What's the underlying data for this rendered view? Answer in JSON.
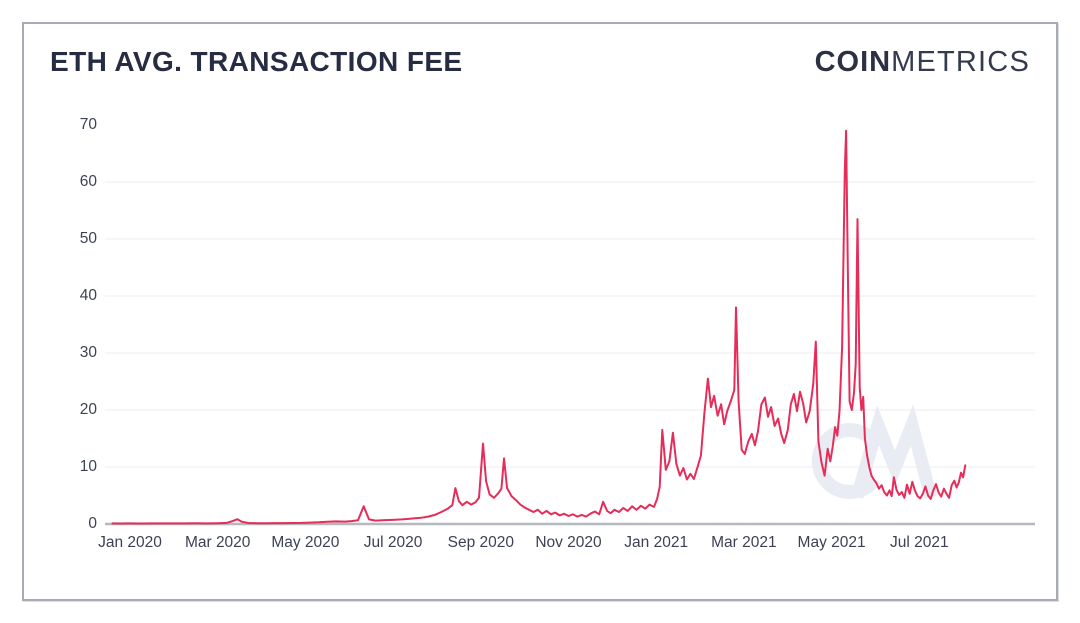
{
  "card": {
    "title": "ETH AVG. TRANSACTION FEE"
  },
  "logo": {
    "bold": "COIN",
    "light": "METRICS"
  },
  "watermark": {
    "name": "coinmetrics-cm-monogram"
  },
  "colors": {
    "line": "#e62d5a",
    "title_text": "#262c42",
    "axis_label": "#3c4254",
    "gridline": "#f3f3f6",
    "baseline": "#b6b8c0",
    "card_border": "#a9abb4",
    "watermark": "#eaecf3",
    "background": "#ffffff"
  },
  "chart_data": {
    "type": "line",
    "title": "ETH AVG. TRANSACTION FEE",
    "series_name": "ETH average transaction fee",
    "xlabel": "",
    "ylabel": "",
    "grid": "horizontal-only",
    "legend": "none",
    "ylim": [
      0,
      70
    ],
    "y_ticks": [
      0,
      10,
      20,
      30,
      40,
      50,
      60,
      70
    ],
    "x_tick_labels": [
      "Jan 2020",
      "Mar 2020",
      "May 2020",
      "Jul 2020",
      "Sep 2020",
      "Nov 2020",
      "Jan 2021",
      "Mar 2021",
      "May 2021",
      "Jul 2021"
    ],
    "x_tick_months": [
      0,
      2,
      4,
      6,
      8,
      10,
      12,
      14,
      16,
      18
    ],
    "x_unit": "months since Jan 2020",
    "points": [
      [
        -0.4,
        0.1
      ],
      [
        -0.2,
        0.09
      ],
      [
        0,
        0.1
      ],
      [
        0.25,
        0.09
      ],
      [
        0.5,
        0.11
      ],
      [
        0.75,
        0.1
      ],
      [
        1.0,
        0.11
      ],
      [
        1.25,
        0.1
      ],
      [
        1.5,
        0.12
      ],
      [
        1.75,
        0.11
      ],
      [
        2.0,
        0.14
      ],
      [
        2.2,
        0.2
      ],
      [
        2.35,
        0.55
      ],
      [
        2.45,
        0.85
      ],
      [
        2.55,
        0.4
      ],
      [
        2.7,
        0.18
      ],
      [
        2.9,
        0.14
      ],
      [
        3.1,
        0.13
      ],
      [
        3.3,
        0.15
      ],
      [
        3.5,
        0.16
      ],
      [
        3.7,
        0.18
      ],
      [
        3.9,
        0.2
      ],
      [
        4.1,
        0.24
      ],
      [
        4.3,
        0.3
      ],
      [
        4.5,
        0.38
      ],
      [
        4.7,
        0.45
      ],
      [
        4.9,
        0.42
      ],
      [
        5.05,
        0.5
      ],
      [
        5.2,
        0.65
      ],
      [
        5.33,
        3.1
      ],
      [
        5.45,
        0.8
      ],
      [
        5.6,
        0.6
      ],
      [
        5.75,
        0.65
      ],
      [
        5.9,
        0.7
      ],
      [
        6.05,
        0.75
      ],
      [
        6.2,
        0.8
      ],
      [
        6.35,
        0.9
      ],
      [
        6.5,
        1.0
      ],
      [
        6.65,
        1.1
      ],
      [
        6.8,
        1.3
      ],
      [
        6.95,
        1.6
      ],
      [
        7.1,
        2.1
      ],
      [
        7.25,
        2.7
      ],
      [
        7.35,
        3.3
      ],
      [
        7.42,
        6.3
      ],
      [
        7.5,
        4.0
      ],
      [
        7.58,
        3.3
      ],
      [
        7.68,
        3.9
      ],
      [
        7.78,
        3.4
      ],
      [
        7.88,
        3.8
      ],
      [
        7.96,
        4.6
      ],
      [
        8.05,
        14.1
      ],
      [
        8.12,
        7.5
      ],
      [
        8.2,
        5.2
      ],
      [
        8.3,
        4.6
      ],
      [
        8.4,
        5.4
      ],
      [
        8.47,
        6.2
      ],
      [
        8.53,
        11.5
      ],
      [
        8.6,
        6.3
      ],
      [
        8.7,
        4.9
      ],
      [
        8.8,
        4.2
      ],
      [
        8.9,
        3.4
      ],
      [
        9.0,
        2.9
      ],
      [
        9.1,
        2.5
      ],
      [
        9.2,
        2.1
      ],
      [
        9.3,
        2.5
      ],
      [
        9.4,
        1.8
      ],
      [
        9.5,
        2.3
      ],
      [
        9.6,
        1.7
      ],
      [
        9.7,
        2.0
      ],
      [
        9.8,
        1.5
      ],
      [
        9.9,
        1.8
      ],
      [
        10.0,
        1.4
      ],
      [
        10.1,
        1.7
      ],
      [
        10.2,
        1.3
      ],
      [
        10.3,
        1.6
      ],
      [
        10.4,
        1.3
      ],
      [
        10.5,
        1.8
      ],
      [
        10.6,
        2.2
      ],
      [
        10.7,
        1.7
      ],
      [
        10.79,
        3.9
      ],
      [
        10.88,
        2.3
      ],
      [
        10.96,
        1.9
      ],
      [
        11.05,
        2.5
      ],
      [
        11.15,
        2.1
      ],
      [
        11.25,
        2.8
      ],
      [
        11.35,
        2.3
      ],
      [
        11.45,
        3.1
      ],
      [
        11.55,
        2.5
      ],
      [
        11.65,
        3.2
      ],
      [
        11.75,
        2.7
      ],
      [
        11.85,
        3.4
      ],
      [
        11.95,
        3.0
      ],
      [
        12.02,
        4.4
      ],
      [
        12.08,
        6.5
      ],
      [
        12.14,
        16.5
      ],
      [
        12.22,
        9.5
      ],
      [
        12.3,
        11.0
      ],
      [
        12.38,
        16.0
      ],
      [
        12.46,
        10.5
      ],
      [
        12.54,
        8.5
      ],
      [
        12.62,
        9.8
      ],
      [
        12.7,
        7.8
      ],
      [
        12.78,
        8.8
      ],
      [
        12.86,
        7.9
      ],
      [
        12.94,
        9.9
      ],
      [
        13.02,
        12.0
      ],
      [
        13.1,
        19.5
      ],
      [
        13.18,
        25.5
      ],
      [
        13.25,
        20.5
      ],
      [
        13.32,
        22.5
      ],
      [
        13.4,
        19.0
      ],
      [
        13.48,
        21.0
      ],
      [
        13.55,
        17.5
      ],
      [
        13.62,
        19.8
      ],
      [
        13.7,
        21.5
      ],
      [
        13.78,
        23.5
      ],
      [
        13.82,
        38.0
      ],
      [
        13.88,
        21.5
      ],
      [
        13.95,
        13.0
      ],
      [
        14.02,
        12.3
      ],
      [
        14.1,
        14.5
      ],
      [
        14.18,
        15.8
      ],
      [
        14.25,
        13.8
      ],
      [
        14.32,
        16.2
      ],
      [
        14.4,
        21.0
      ],
      [
        14.48,
        22.2
      ],
      [
        14.55,
        18.8
      ],
      [
        14.62,
        20.5
      ],
      [
        14.7,
        17.2
      ],
      [
        14.78,
        18.5
      ],
      [
        14.85,
        15.8
      ],
      [
        14.92,
        14.2
      ],
      [
        15.0,
        16.5
      ],
      [
        15.07,
        21.0
      ],
      [
        15.14,
        22.8
      ],
      [
        15.21,
        19.8
      ],
      [
        15.28,
        23.2
      ],
      [
        15.35,
        21.2
      ],
      [
        15.42,
        17.8
      ],
      [
        15.5,
        19.8
      ],
      [
        15.58,
        24.5
      ],
      [
        15.64,
        32.0
      ],
      [
        15.7,
        14.5
      ],
      [
        15.77,
        10.8
      ],
      [
        15.84,
        8.5
      ],
      [
        15.91,
        13.2
      ],
      [
        15.97,
        11.0
      ],
      [
        16.03,
        13.8
      ],
      [
        16.08,
        17.0
      ],
      [
        16.13,
        15.5
      ],
      [
        16.18,
        19.8
      ],
      [
        16.24,
        31.0
      ],
      [
        16.3,
        62.0
      ],
      [
        16.33,
        69.0
      ],
      [
        16.37,
        45.0
      ],
      [
        16.41,
        21.5
      ],
      [
        16.46,
        20.0
      ],
      [
        16.51,
        23.0
      ],
      [
        16.55,
        28.0
      ],
      [
        16.59,
        53.5
      ],
      [
        16.64,
        24.0
      ],
      [
        16.68,
        20.0
      ],
      [
        16.72,
        22.3
      ],
      [
        16.76,
        15.0
      ],
      [
        16.81,
        12.0
      ],
      [
        16.86,
        10.0
      ],
      [
        16.91,
        8.5
      ],
      [
        16.96,
        7.8
      ],
      [
        17.02,
        7.2
      ],
      [
        17.08,
        6.2
      ],
      [
        17.14,
        6.8
      ],
      [
        17.2,
        5.6
      ],
      [
        17.26,
        5.0
      ],
      [
        17.32,
        5.9
      ],
      [
        17.37,
        4.9
      ],
      [
        17.42,
        8.2
      ],
      [
        17.48,
        6.0
      ],
      [
        17.54,
        5.1
      ],
      [
        17.6,
        5.6
      ],
      [
        17.66,
        4.6
      ],
      [
        17.72,
        6.9
      ],
      [
        17.78,
        5.3
      ],
      [
        17.84,
        7.4
      ],
      [
        17.9,
        5.9
      ],
      [
        17.96,
        4.9
      ],
      [
        18.02,
        4.5
      ],
      [
        18.08,
        5.3
      ],
      [
        18.14,
        6.6
      ],
      [
        18.2,
        5.0
      ],
      [
        18.26,
        4.4
      ],
      [
        18.32,
        5.9
      ],
      [
        18.38,
        7.0
      ],
      [
        18.44,
        5.5
      ],
      [
        18.5,
        4.8
      ],
      [
        18.56,
        6.2
      ],
      [
        18.62,
        5.3
      ],
      [
        18.68,
        4.6
      ],
      [
        18.74,
        6.8
      ],
      [
        18.8,
        7.6
      ],
      [
        18.85,
        6.4
      ],
      [
        18.9,
        7.3
      ],
      [
        18.95,
        9.0
      ],
      [
        19.0,
        8.2
      ],
      [
        19.05,
        10.3
      ]
    ]
  }
}
